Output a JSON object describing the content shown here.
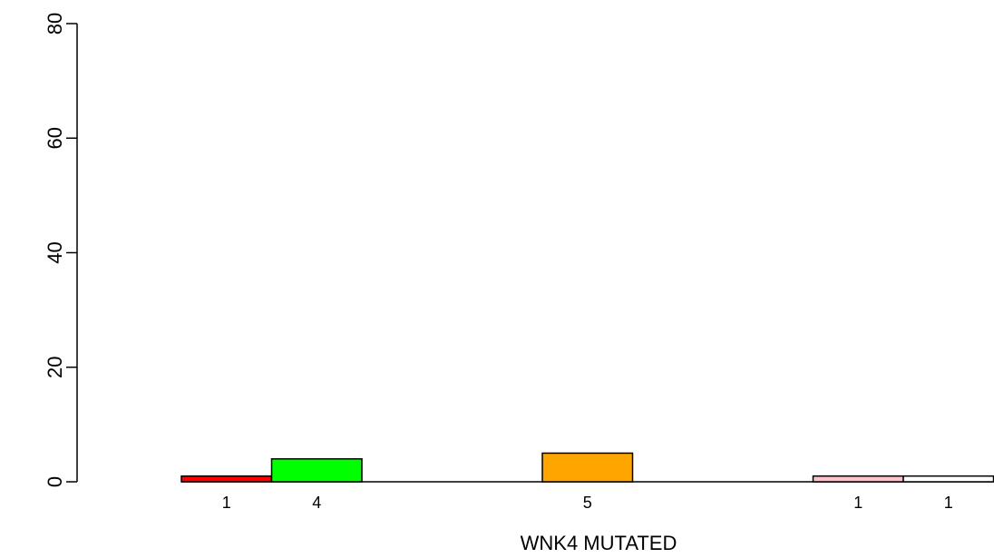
{
  "chart_data": {
    "type": "bar",
    "xlabel": "WNK4 MUTATED",
    "ylabel": "",
    "ylim": [
      0,
      80
    ],
    "yticks": [
      0,
      20,
      40,
      60,
      80
    ],
    "grid": false,
    "bars": [
      {
        "slot": 0,
        "value": 1,
        "label": "1",
        "color": "#ff0000"
      },
      {
        "slot": 1,
        "value": 4,
        "label": "4",
        "color": "#00ff00"
      },
      {
        "slot": 4,
        "value": 5,
        "label": "5",
        "color": "#ffa500"
      },
      {
        "slot": 7,
        "value": 1,
        "label": "1",
        "color": "#ffc0cb"
      },
      {
        "slot": 8,
        "value": 1,
        "label": "1",
        "color": "#ffffff"
      }
    ]
  }
}
